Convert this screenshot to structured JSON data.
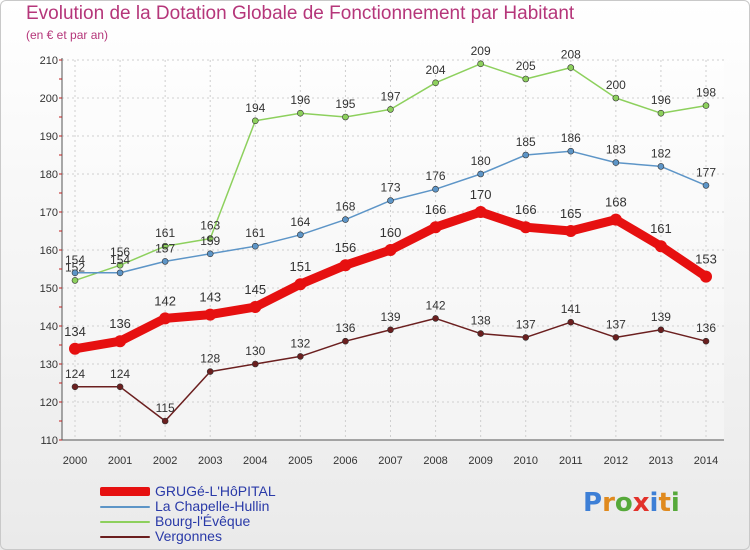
{
  "header": {
    "title": "Evolution de la Dotation Globale de Fonctionnement par Habitant",
    "subtitle": "(en € et par an)"
  },
  "chart_data": {
    "type": "line",
    "title": "Evolution de la Dotation Globale de Fonctionnement par Habitant",
    "ylabel": "(en € et par an)",
    "xlabel": "",
    "x": [
      "2000",
      "2001",
      "2002",
      "2003",
      "2004",
      "2005",
      "2006",
      "2007",
      "2008",
      "2009",
      "2010",
      "2011",
      "2012",
      "2013",
      "2014"
    ],
    "ylim": [
      110,
      210
    ],
    "yticks": [
      110,
      120,
      130,
      140,
      150,
      160,
      170,
      180,
      190,
      200,
      210
    ],
    "grid": true,
    "legend_position": "bottom-left",
    "series": [
      {
        "name": "GRUGé-L'HôPITAL",
        "color": "#e61010",
        "values": [
          134,
          136,
          142,
          143,
          145,
          151,
          156,
          160,
          166,
          170,
          166,
          165,
          168,
          161,
          153
        ]
      },
      {
        "name": "La Chapelle-Hullin",
        "color": "#5d95c7",
        "values": [
          154,
          154,
          157,
          159,
          161,
          164,
          168,
          173,
          176,
          180,
          185,
          186,
          183,
          182,
          177
        ]
      },
      {
        "name": "Bourg-l'Évêque",
        "color": "#8dd05d",
        "values": [
          152,
          156,
          161,
          163,
          194,
          196,
          195,
          197,
          204,
          209,
          205,
          208,
          200,
          196,
          198
        ]
      },
      {
        "name": "Vergonnes",
        "color": "#6b1f1f",
        "values": [
          124,
          124,
          115,
          128,
          130,
          132,
          136,
          139,
          142,
          138,
          137,
          141,
          137,
          139,
          136
        ]
      }
    ]
  },
  "logo": {
    "letters": [
      "P",
      "r",
      "o",
      "x",
      "i",
      "t",
      "i"
    ],
    "colors": [
      "#3d7fd6",
      "#e08a1e",
      "#56a93a",
      "#e2312a",
      "#3d7fd6",
      "#e08a1e",
      "#56a93a"
    ]
  }
}
